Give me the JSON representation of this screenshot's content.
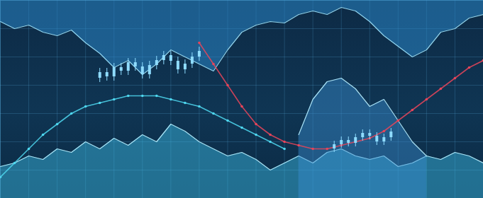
{
  "chart_data": {
    "type": "area",
    "grid": true,
    "tick_labels": false,
    "xlim": [
      0,
      68
    ],
    "ylim": [
      0,
      28
    ],
    "xticks": [
      0,
      4,
      8,
      12,
      16,
      20,
      24,
      28,
      32,
      36,
      40,
      44,
      48,
      52,
      56,
      60,
      64,
      68
    ],
    "yticks": [
      0,
      4,
      8,
      12,
      16,
      20,
      24,
      28
    ],
    "x": [
      0,
      2,
      4,
      6,
      8,
      10,
      12,
      14,
      16,
      18,
      20,
      22,
      24,
      26,
      28,
      30,
      32,
      34,
      36,
      38,
      40,
      42,
      44,
      46,
      48,
      50,
      52,
      54,
      56,
      58,
      60,
      62,
      64,
      66,
      68
    ],
    "series": [
      {
        "type": "inverted_area",
        "color": "#2a86c8",
        "values": [
          25,
          24,
          24.5,
          23.5,
          23,
          23.8,
          22,
          20.5,
          18.5,
          19.5,
          17.5,
          19,
          21,
          20,
          19,
          18,
          21,
          23.5,
          24.5,
          25,
          24.8,
          26,
          26.5,
          26,
          27,
          26.5,
          25,
          23,
          21.5,
          20,
          21,
          23.5,
          24,
          25.5,
          26
        ]
      },
      {
        "type": "area",
        "color": "#3fc3ee",
        "values": [
          4.5,
          5,
          6,
          5.5,
          7,
          6.5,
          8,
          7,
          8.5,
          7.5,
          9,
          8,
          10.5,
          9.5,
          8,
          7,
          6,
          6.5,
          5.5,
          4,
          5,
          6,
          5,
          6.5,
          7,
          6,
          5.5,
          6,
          4.5,
          5,
          6,
          5.5,
          6.5,
          6,
          5
        ]
      },
      {
        "type": "area",
        "color": "#3a8fd0",
        "values": [
          null,
          null,
          null,
          null,
          null,
          null,
          null,
          null,
          null,
          null,
          null,
          null,
          null,
          null,
          null,
          null,
          null,
          null,
          null,
          null,
          null,
          9,
          14,
          16.5,
          17,
          15.5,
          13,
          14,
          11,
          8,
          6,
          null,
          null,
          null,
          null
        ]
      },
      {
        "type": "line",
        "color": "#e8455a",
        "values": [
          null,
          null,
          null,
          null,
          null,
          null,
          null,
          null,
          null,
          null,
          null,
          null,
          null,
          null,
          22,
          19,
          16,
          13,
          10.5,
          9,
          8,
          7.5,
          7,
          7,
          7.5,
          8,
          8.5,
          9.5,
          11,
          12.5,
          14,
          15.5,
          17,
          18.5,
          19.5
        ]
      },
      {
        "type": "line",
        "color": "#4fd8f0",
        "values": [
          3,
          5,
          7,
          9,
          10.5,
          12,
          13,
          13.5,
          14,
          14.5,
          14.5,
          14.5,
          14,
          13.5,
          13,
          12,
          11,
          10,
          9,
          8,
          7,
          null,
          null,
          null,
          null,
          null,
          null,
          null,
          null,
          null,
          null,
          null,
          null,
          null,
          null
        ]
      },
      {
        "type": "candlestick",
        "color": "#8fdcff",
        "x": [
          14,
          15,
          16,
          17,
          18,
          19,
          20,
          21,
          22,
          23,
          24,
          25,
          26,
          27,
          28
        ],
        "open": [
          17,
          17.8,
          17.2,
          18.5,
          18,
          19.2,
          18.6,
          17.5,
          18.8,
          19.5,
          20.2,
          19.4,
          18.2,
          19,
          20
        ],
        "close": [
          17.8,
          17.2,
          18.5,
          18,
          19.2,
          18.6,
          17.5,
          18.8,
          19.5,
          20.2,
          19.4,
          18.2,
          19,
          20,
          20.8
        ],
        "high": [
          18.4,
          18.4,
          19.1,
          19.1,
          19.8,
          19.8,
          19.2,
          19.4,
          20.1,
          20.8,
          20.8,
          20,
          19.6,
          20.6,
          21.4
        ],
        "low": [
          16.4,
          16.6,
          16.6,
          17.4,
          17.4,
          18,
          16.9,
          16.9,
          18.2,
          18.9,
          18.8,
          17.6,
          17.6,
          18.4,
          19.4
        ]
      },
      {
        "type": "candlestick",
        "color": "#8fdcff",
        "x": [
          47,
          48,
          49,
          50,
          51,
          52,
          53,
          54,
          55
        ],
        "open": [
          7,
          7.6,
          8.2,
          7.8,
          8.6,
          9.2,
          8.8,
          8,
          8.6
        ],
        "close": [
          7.6,
          8.2,
          7.8,
          8.6,
          9.2,
          8.8,
          8,
          8.6,
          9.4
        ],
        "high": [
          8.1,
          8.7,
          8.7,
          9.1,
          9.7,
          9.7,
          9.3,
          9.1,
          9.9
        ],
        "low": [
          6.5,
          7.1,
          7.3,
          7.3,
          8.1,
          8.3,
          7.5,
          7.5,
          8.1
        ]
      }
    ]
  }
}
